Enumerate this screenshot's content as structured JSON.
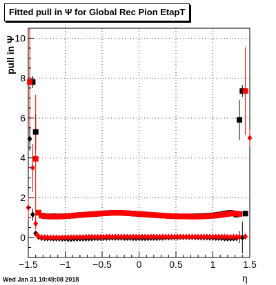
{
  "chart_data": {
    "type": "scatter",
    "title": "Fitted pull in Ψ  for Global Rec Pion EtapT",
    "xlabel": "η",
    "ylabel": "pull in Ψ",
    "xlim": [
      -1.5,
      1.5
    ],
    "ylim": [
      -1,
      10.5
    ],
    "xticks": [
      -1.5,
      -1,
      -0.5,
      0,
      0.5,
      1,
      1.5
    ],
    "xtick_labels": [
      "−1.5",
      "−1",
      "−0.5",
      "0",
      "0.5",
      "1",
      "1.5"
    ],
    "yticks": [
      0,
      2,
      4,
      6,
      8,
      10
    ],
    "ytick_labels": [
      "0",
      "2",
      "4",
      "6",
      "8",
      "10"
    ],
    "grid": true,
    "colors": {
      "black": "#000000",
      "red": "#ff0000"
    },
    "series": [
      {
        "marker": "square",
        "color": "#000000",
        "x": [
          -1.44,
          -1.4,
          -1.36,
          -1.32,
          -1.28,
          -1.24,
          -1.2,
          -1.16,
          -1.12,
          -1.08,
          -1.04,
          -1.0,
          -0.96,
          -0.92,
          -0.88,
          -0.84,
          -0.8,
          -0.76,
          -0.72,
          -0.68,
          -0.64,
          -0.6,
          -0.56,
          -0.52,
          -0.48,
          -0.44,
          -0.4,
          -0.36,
          -0.32,
          -0.28,
          -0.24,
          -0.2,
          -0.16,
          -0.12,
          -0.08,
          -0.04,
          0.0,
          0.04,
          0.08,
          0.12,
          0.16,
          0.2,
          0.24,
          0.28,
          0.32,
          0.36,
          0.4,
          0.44,
          0.48,
          0.52,
          0.56,
          0.6,
          0.64,
          0.68,
          0.72,
          0.76,
          0.8,
          0.84,
          0.88,
          0.92,
          0.96,
          1.0,
          1.04,
          1.08,
          1.12,
          1.16,
          1.2,
          1.24,
          1.28,
          1.32,
          1.36,
          1.4,
          1.44
        ],
        "y": [
          7.8,
          5.3,
          1.25,
          1.1,
          1.08,
          1.06,
          1.06,
          1.07,
          1.06,
          1.06,
          1.07,
          1.07,
          1.08,
          1.09,
          1.1,
          1.12,
          1.13,
          1.14,
          1.15,
          1.16,
          1.17,
          1.18,
          1.19,
          1.2,
          1.21,
          1.22,
          1.23,
          1.24,
          1.24,
          1.24,
          1.24,
          1.23,
          1.22,
          1.21,
          1.2,
          1.19,
          1.18,
          1.17,
          1.16,
          1.15,
          1.14,
          1.13,
          1.12,
          1.11,
          1.1,
          1.09,
          1.08,
          1.07,
          1.07,
          1.06,
          1.06,
          1.06,
          1.06,
          1.06,
          1.06,
          1.07,
          1.07,
          1.08,
          1.08,
          1.09,
          1.1,
          1.11,
          1.13,
          1.15,
          1.17,
          1.2,
          1.22,
          1.24,
          1.2,
          1.15,
          5.9,
          7.35,
          1.2
        ],
        "err": [
          0.3,
          0.9,
          0.1,
          0.05,
          0.04,
          0.03,
          0.03,
          0.03,
          0.03,
          0.03,
          0.03,
          0.03,
          0.03,
          0.03,
          0.03,
          0.03,
          0.03,
          0.03,
          0.03,
          0.03,
          0.03,
          0.03,
          0.03,
          0.03,
          0.03,
          0.03,
          0.03,
          0.03,
          0.03,
          0.03,
          0.03,
          0.03,
          0.03,
          0.03,
          0.03,
          0.03,
          0.03,
          0.03,
          0.03,
          0.03,
          0.03,
          0.03,
          0.03,
          0.03,
          0.03,
          0.03,
          0.03,
          0.03,
          0.03,
          0.03,
          0.03,
          0.03,
          0.03,
          0.03,
          0.03,
          0.03,
          0.03,
          0.03,
          0.03,
          0.03,
          0.03,
          0.03,
          0.03,
          0.03,
          0.03,
          0.03,
          0.03,
          0.03,
          0.04,
          0.05,
          1.0,
          0.3,
          0.1
        ]
      },
      {
        "marker": "square",
        "color": "#ff0000",
        "x": [
          -1.48,
          -1.4,
          -1.36,
          -1.32,
          -1.28,
          -1.24,
          -1.2,
          -1.16,
          -1.12,
          -1.08,
          -1.04,
          -1.0,
          -0.96,
          -0.92,
          -0.88,
          -0.84,
          -0.8,
          -0.76,
          -0.72,
          -0.68,
          -0.64,
          -0.6,
          -0.56,
          -0.52,
          -0.48,
          -0.44,
          -0.4,
          -0.36,
          -0.32,
          -0.28,
          -0.24,
          -0.2,
          -0.16,
          -0.12,
          -0.08,
          -0.04,
          0.0,
          0.04,
          0.08,
          0.12,
          0.16,
          0.2,
          0.24,
          0.28,
          0.32,
          0.36,
          0.4,
          0.44,
          0.48,
          0.52,
          0.56,
          0.6,
          0.64,
          0.68,
          0.72,
          0.76,
          0.8,
          0.84,
          0.88,
          0.92,
          0.96,
          1.0,
          1.04,
          1.08,
          1.12,
          1.16,
          1.2,
          1.24,
          1.28,
          1.32,
          1.36,
          1.44
        ],
        "y": [
          7.8,
          3.95,
          1.25,
          1.1,
          1.07,
          1.06,
          1.05,
          1.05,
          1.05,
          1.05,
          1.06,
          1.07,
          1.08,
          1.09,
          1.1,
          1.12,
          1.13,
          1.14,
          1.15,
          1.16,
          1.17,
          1.18,
          1.19,
          1.2,
          1.21,
          1.22,
          1.23,
          1.24,
          1.24,
          1.24,
          1.24,
          1.23,
          1.22,
          1.21,
          1.2,
          1.19,
          1.18,
          1.17,
          1.16,
          1.15,
          1.14,
          1.13,
          1.12,
          1.11,
          1.1,
          1.09,
          1.08,
          1.07,
          1.07,
          1.06,
          1.06,
          1.06,
          1.06,
          1.05,
          1.05,
          1.05,
          1.05,
          1.06,
          1.06,
          1.07,
          1.08,
          1.09,
          1.1,
          1.12,
          1.14,
          1.16,
          1.18,
          1.2,
          1.22,
          1.2,
          1.18,
          7.35
        ],
        "err": [
          2.8,
          3.2,
          0.1,
          0.05,
          0.04,
          0.03,
          0.03,
          0.03,
          0.03,
          0.03,
          0.03,
          0.03,
          0.03,
          0.03,
          0.03,
          0.03,
          0.03,
          0.03,
          0.03,
          0.03,
          0.03,
          0.03,
          0.03,
          0.03,
          0.03,
          0.03,
          0.03,
          0.03,
          0.03,
          0.03,
          0.03,
          0.03,
          0.03,
          0.03,
          0.03,
          0.03,
          0.03,
          0.03,
          0.03,
          0.03,
          0.03,
          0.03,
          0.03,
          0.03,
          0.03,
          0.03,
          0.03,
          0.03,
          0.03,
          0.03,
          0.03,
          0.03,
          0.03,
          0.03,
          0.03,
          0.03,
          0.03,
          0.03,
          0.03,
          0.03,
          0.03,
          0.03,
          0.03,
          0.03,
          0.03,
          0.03,
          0.03,
          0.03,
          0.03,
          0.05,
          0.08,
          2.2
        ]
      },
      {
        "marker": "diamond",
        "color": "#000000",
        "x": [
          -1.48,
          -1.44,
          -1.4,
          -1.36,
          -1.32,
          -1.28,
          -1.24,
          -1.2,
          -1.16,
          -1.12,
          -1.08,
          -1.04,
          -1.0,
          -0.96,
          -0.92,
          -0.88,
          -0.84,
          -0.8,
          -0.76,
          -0.72,
          -0.68,
          -0.64,
          -0.6,
          -0.56,
          -0.52,
          -0.48,
          -0.44,
          -0.4,
          -0.36,
          -0.32,
          -0.28,
          -0.24,
          -0.2,
          -0.16,
          -0.12,
          -0.08,
          -0.04,
          0.0,
          0.04,
          0.08,
          0.12,
          0.16,
          0.2,
          0.24,
          0.28,
          0.32,
          0.36,
          0.4,
          0.44,
          0.48,
          0.52,
          0.56,
          0.6,
          0.64,
          0.68,
          0.72,
          0.76,
          0.8,
          0.84,
          0.88,
          0.92,
          0.96,
          1.0,
          1.04,
          1.08,
          1.12,
          1.16,
          1.2,
          1.24,
          1.28,
          1.32,
          1.36,
          1.4,
          1.44
        ],
        "y": [
          4.95,
          1.15,
          0.2,
          0.02,
          -0.02,
          -0.03,
          -0.04,
          -0.04,
          -0.05,
          -0.05,
          -0.05,
          -0.06,
          -0.06,
          -0.07,
          -0.07,
          -0.06,
          -0.06,
          -0.05,
          -0.05,
          -0.05,
          -0.04,
          -0.04,
          -0.03,
          -0.03,
          -0.02,
          -0.02,
          -0.02,
          -0.01,
          -0.01,
          -0.01,
          -0.01,
          -0.01,
          -0.02,
          -0.02,
          -0.02,
          -0.03,
          -0.03,
          -0.03,
          -0.03,
          -0.03,
          -0.03,
          -0.02,
          -0.02,
          -0.02,
          -0.01,
          -0.01,
          0.0,
          0.0,
          0.01,
          0.01,
          0.01,
          0.02,
          0.02,
          0.02,
          0.02,
          0.02,
          0.01,
          0.01,
          0.0,
          0.0,
          0.0,
          -0.01,
          -0.01,
          -0.02,
          -0.02,
          -0.03,
          -0.04,
          -0.05,
          -0.05,
          -0.04,
          -0.03,
          0.02,
          0.0,
          0.05
        ],
        "err": [
          0.6,
          0.3,
          0.08,
          0.04,
          0.03,
          0.02,
          0.02,
          0.02,
          0.02,
          0.02,
          0.02,
          0.02,
          0.02,
          0.02,
          0.02,
          0.02,
          0.02,
          0.02,
          0.02,
          0.02,
          0.02,
          0.02,
          0.02,
          0.02,
          0.02,
          0.02,
          0.02,
          0.02,
          0.02,
          0.02,
          0.02,
          0.02,
          0.02,
          0.02,
          0.02,
          0.02,
          0.02,
          0.02,
          0.02,
          0.02,
          0.02,
          0.02,
          0.02,
          0.02,
          0.02,
          0.02,
          0.02,
          0.02,
          0.02,
          0.02,
          0.02,
          0.02,
          0.02,
          0.02,
          0.02,
          0.02,
          0.02,
          0.02,
          0.02,
          0.02,
          0.02,
          0.02,
          0.02,
          0.02,
          0.02,
          0.02,
          0.02,
          0.02,
          0.02,
          0.02,
          0.03,
          0.3,
          0.8,
          0.1
        ]
      },
      {
        "marker": "diamond",
        "color": "#ff0000",
        "x": [
          -1.5,
          -1.44,
          -1.4,
          -1.38,
          -1.36,
          -1.32,
          -1.28,
          -1.24,
          -1.2,
          -1.16,
          -1.12,
          -1.08,
          -1.04,
          -1.0,
          -0.96,
          -0.92,
          -0.88,
          -0.84,
          -0.8,
          -0.76,
          -0.72,
          -0.68,
          -0.64,
          -0.6,
          -0.56,
          -0.52,
          -0.48,
          -0.44,
          -0.4,
          -0.36,
          -0.32,
          -0.28,
          -0.24,
          -0.2,
          -0.16,
          -0.12,
          -0.08,
          -0.04,
          0.0,
          0.04,
          0.08,
          0.12,
          0.16,
          0.2,
          0.24,
          0.28,
          0.32,
          0.36,
          0.4,
          0.44,
          0.48,
          0.52,
          0.56,
          0.6,
          0.64,
          0.68,
          0.72,
          0.76,
          0.8,
          0.84,
          0.88,
          0.92,
          0.96,
          1.0,
          1.04,
          1.08,
          1.12,
          1.16,
          1.2,
          1.24,
          1.28,
          1.32,
          1.36,
          1.44,
          1.5
        ],
        "y": [
          1.5,
          3.5,
          0.7,
          0.15,
          0.05,
          0.02,
          0.01,
          0.01,
          0.0,
          0.0,
          0.0,
          0.0,
          0.0,
          0.01,
          0.01,
          0.01,
          0.02,
          0.02,
          0.02,
          0.02,
          0.03,
          0.03,
          0.03,
          0.03,
          0.03,
          0.03,
          0.03,
          0.04,
          0.04,
          0.04,
          0.04,
          0.04,
          0.04,
          0.04,
          0.04,
          0.04,
          0.04,
          0.04,
          0.04,
          0.04,
          0.04,
          0.04,
          0.04,
          0.04,
          0.04,
          0.04,
          0.04,
          0.04,
          0.04,
          0.04,
          0.04,
          0.04,
          0.04,
          0.04,
          0.04,
          0.04,
          0.04,
          0.04,
          0.04,
          0.04,
          0.04,
          0.04,
          0.04,
          0.04,
          0.04,
          0.04,
          0.04,
          0.04,
          0.03,
          0.03,
          0.03,
          0.03,
          0.03,
          0.05,
          5.0
        ],
        "err": [
          0.6,
          1.2,
          0.3,
          0.06,
          0.03,
          0.02,
          0.02,
          0.02,
          0.02,
          0.02,
          0.02,
          0.02,
          0.02,
          0.02,
          0.02,
          0.02,
          0.02,
          0.02,
          0.02,
          0.02,
          0.02,
          0.02,
          0.02,
          0.02,
          0.02,
          0.02,
          0.02,
          0.02,
          0.02,
          0.02,
          0.02,
          0.02,
          0.02,
          0.02,
          0.02,
          0.02,
          0.02,
          0.02,
          0.02,
          0.02,
          0.02,
          0.02,
          0.02,
          0.02,
          0.02,
          0.02,
          0.02,
          0.02,
          0.02,
          0.02,
          0.02,
          0.02,
          0.02,
          0.02,
          0.02,
          0.02,
          0.02,
          0.02,
          0.02,
          0.02,
          0.02,
          0.02,
          0.02,
          0.02,
          0.02,
          0.02,
          0.02,
          0.02,
          0.02,
          0.02,
          0.02,
          0.02,
          0.03,
          0.1,
          0.4
        ]
      }
    ]
  },
  "footer": {
    "timestamp": "Wed Jan 31 10:49:08 2018"
  }
}
